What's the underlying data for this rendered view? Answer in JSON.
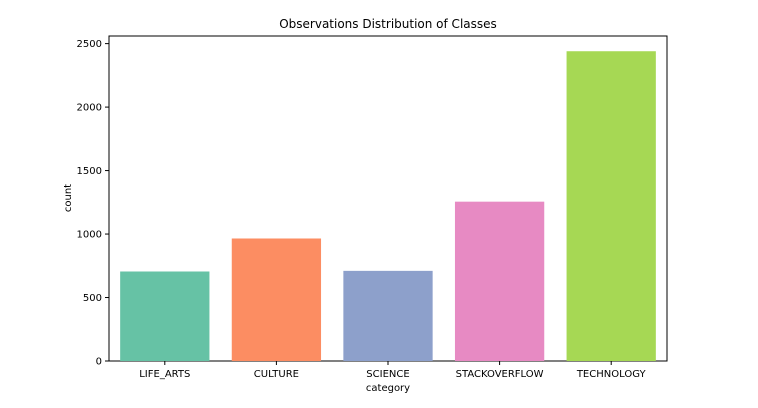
{
  "chart_data": {
    "type": "bar",
    "title": "Observations Distribution of Classes",
    "xlabel": "category",
    "ylabel": "count",
    "categories": [
      "LIFE_ARTS",
      "CULTURE",
      "SCIENCE",
      "STACKOVERFLOW",
      "TECHNOLOGY"
    ],
    "values": [
      705,
      965,
      710,
      1255,
      2440
    ],
    "colors": [
      "#66c2a5",
      "#fc8d62",
      "#8da0cb",
      "#e78ac3",
      "#a6d854"
    ],
    "ylim": [
      0,
      2560
    ],
    "yticks": [
      0,
      500,
      1000,
      1500,
      2000,
      2500
    ],
    "grid": false,
    "legend": "none"
  }
}
